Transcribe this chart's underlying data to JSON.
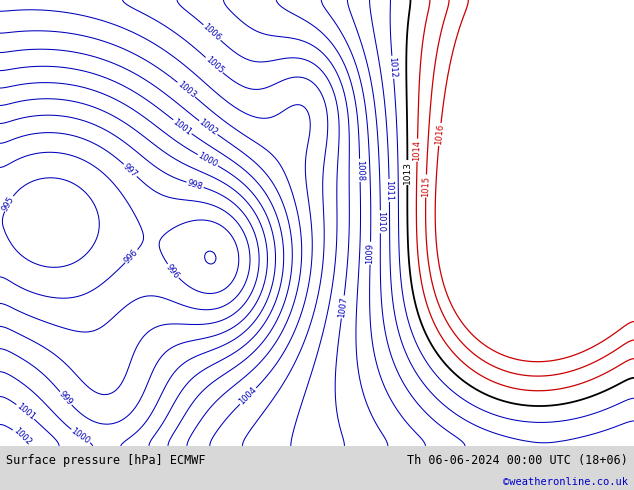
{
  "title_left": "Surface pressure [hPa] ECMWF",
  "title_right": "Th 06-06-2024 00:00 UTC (18+06)",
  "copyright": "©weatheronline.co.uk",
  "bg_ocean": "#d0d0d8",
  "bg_land": "#b8d8b0",
  "bg_footer": "#d8d8d8",
  "contour_color_blue": "#0000bb",
  "contour_color_red": "#cc0000",
  "contour_color_black": "#000000",
  "figsize": [
    6.34,
    4.9
  ],
  "dpi": 100,
  "lon_min": -15,
  "lon_max": 40,
  "lat_min": 48,
  "lat_max": 75,
  "levels_blue_min": 994,
  "levels_blue_max": 1013,
  "levels_red_min": 1014,
  "levels_red_max": 1016,
  "level_black": 1013
}
